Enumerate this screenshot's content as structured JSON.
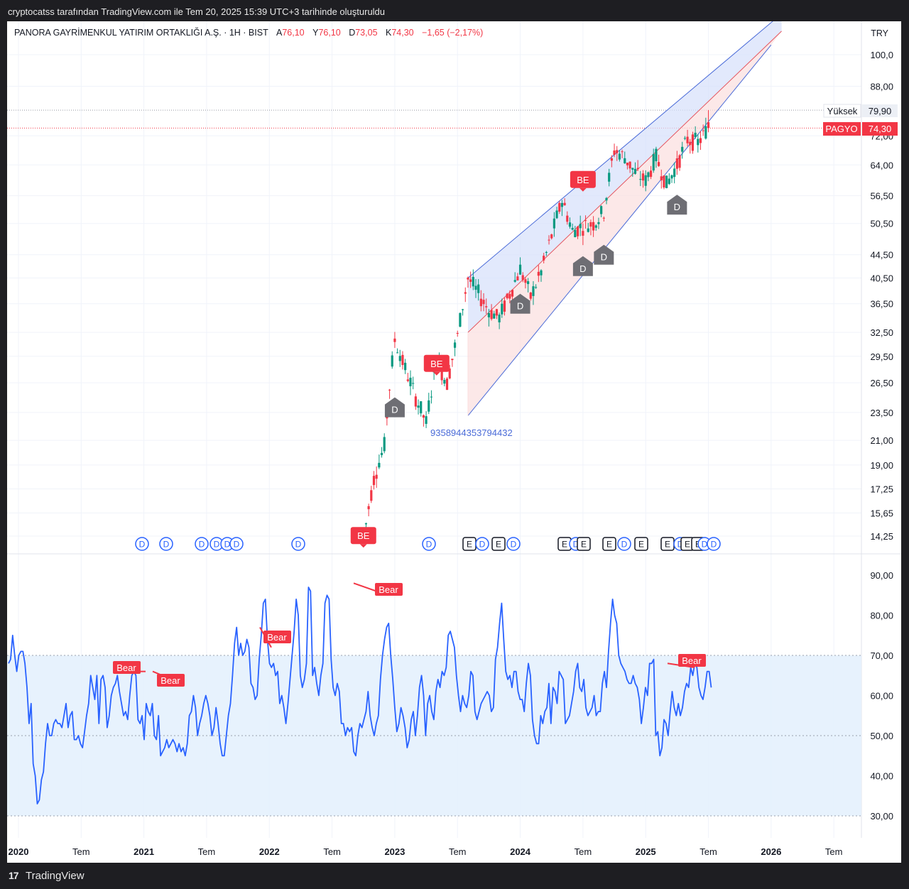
{
  "header": {
    "attribution": "cryptocatss tarafından TradingView.com ile Tem 20, 2025 15:39 UTC+3 tarihinde oluşturuldu"
  },
  "footer": {
    "brand": "TradingView"
  },
  "legend": {
    "symbol": "PANORA GAYRİMENKUL YATIRIM ORTAKLIĞI A.Ş. · 1H · BIST",
    "open_label": "A",
    "open": "76,10",
    "high_label": "Y",
    "high": "76,10",
    "low_label": "D",
    "low": "73,05",
    "close_label": "K",
    "close": "74,30",
    "change": "−1,65 (−2,17%)"
  },
  "currency": "TRY",
  "badges": {
    "high_name": "Yüksek",
    "high_value": "79,90",
    "last_name": "PAGYO",
    "last_value": "74,30"
  },
  "channel_label": "9358944353794432",
  "colors": {
    "up": "#089981",
    "down": "#f23645",
    "rsi": "#2962ff",
    "channel": "#4a6bd8",
    "bear": "#f23645",
    "marker_d": "#6e6e74"
  },
  "chart_data": [
    {
      "type": "candlestick",
      "title": "PANORA GAYRİMENKUL YATIRIM ORTAKLIĞI A.Ş.",
      "scale": "log",
      "price_axis_labels": [
        "100,0",
        "88,00",
        "72,00",
        "64,00",
        "56,50",
        "50,50",
        "44,50",
        "40,50",
        "36,50",
        "32,50",
        "29,50",
        "26,50",
        "23,50",
        "21,00",
        "19,00",
        "17,25",
        "15,65",
        "14,25"
      ],
      "time_axis_labels": [
        "2020",
        "Tem",
        "2021",
        "Tem",
        "2022",
        "Tem",
        "2023",
        "Tem",
        "2024",
        "Tem",
        "2025",
        "Tem",
        "2026",
        "Tem"
      ],
      "series_path": [
        [
          "2022-10",
          14.0
        ],
        [
          "2022-11",
          18.0
        ],
        [
          "2022-12",
          20.5
        ],
        [
          "2023-01",
          31.5
        ],
        [
          "2023-02",
          28.0
        ],
        [
          "2023-03",
          25.0
        ],
        [
          "2023-04",
          22.5
        ],
        [
          "2023-05",
          29.0
        ],
        [
          "2023-06",
          26.5
        ],
        [
          "2023-07",
          32.0
        ],
        [
          "2023-08",
          40.5
        ],
        [
          "2023-09",
          38.0
        ],
        [
          "2023-10",
          35.5
        ],
        [
          "2023-11",
          34.5
        ],
        [
          "2023-12",
          38.0
        ],
        [
          "2024-01",
          42.0
        ],
        [
          "2024-02",
          37.5
        ],
        [
          "2024-03",
          41.5
        ],
        [
          "2024-04",
          48.0
        ],
        [
          "2024-05",
          55.5
        ],
        [
          "2024-06",
          49.0
        ],
        [
          "2024-07",
          50.0
        ],
        [
          "2024-08",
          50.5
        ],
        [
          "2024-09",
          53.0
        ],
        [
          "2024-10",
          68.0
        ],
        [
          "2024-11",
          66.0
        ],
        [
          "2024-12",
          62.0
        ],
        [
          "2025-01",
          60.0
        ],
        [
          "2025-02",
          66.0
        ],
        [
          "2025-03",
          59.0
        ],
        [
          "2025-04",
          64.0
        ],
        [
          "2025-05",
          71.0
        ],
        [
          "2025-06",
          70.0
        ],
        [
          "2025-07",
          74.3
        ]
      ],
      "last_price": 74.3,
      "high": 79.9,
      "markers": [
        {
          "text": "BE",
          "date": "2022-10",
          "price": 14.2
        },
        {
          "text": "BE",
          "date": "2023-05",
          "price": 28.5
        },
        {
          "text": "BE",
          "date": "2024-07",
          "price": 60.0
        },
        {
          "text": "D",
          "date": "2023-01",
          "price": 24.0
        },
        {
          "text": "D",
          "date": "2024-01",
          "price": 36.5
        },
        {
          "text": "D",
          "date": "2024-07",
          "price": 42.5
        },
        {
          "text": "D",
          "date": "2024-09",
          "price": 44.5
        },
        {
          "text": "D",
          "date": "2025-04",
          "price": 54.5
        }
      ],
      "event_row": [
        "D",
        "D",
        "D",
        "D",
        "D",
        "D",
        "D",
        "D",
        "E",
        "D",
        "E",
        "D",
        "E",
        "D",
        "E",
        "E",
        "D",
        "E",
        "E",
        "D",
        "E",
        "E",
        "D",
        "D"
      ]
    },
    {
      "type": "line",
      "title": "",
      "axis_labels": [
        "90,00",
        "80,00",
        "70,00",
        "60,00",
        "50,00",
        "40,00",
        "30,00"
      ],
      "band": [
        30,
        70
      ],
      "midline": 50,
      "values": [
        68,
        69,
        75,
        70,
        66,
        70,
        71,
        71,
        68,
        62,
        53,
        58,
        43,
        40,
        33,
        34,
        39,
        41,
        48,
        53,
        50,
        50,
        53,
        54,
        53,
        53,
        52,
        55,
        58,
        52,
        55,
        56,
        49,
        49,
        50,
        48,
        47,
        51,
        55,
        58,
        65,
        62,
        59,
        65,
        53,
        64,
        65,
        62,
        52,
        55,
        60,
        62,
        63,
        65,
        61,
        58,
        55,
        56,
        54,
        60,
        65,
        66,
        65,
        54,
        53,
        55,
        49,
        58,
        56,
        55,
        58,
        50,
        49,
        55,
        45,
        46,
        47,
        49,
        47,
        48,
        49,
        48,
        46,
        48,
        46,
        47,
        45,
        48,
        55,
        56,
        60,
        57,
        50,
        53,
        55,
        58,
        60,
        58,
        55,
        50,
        52,
        57,
        53,
        48,
        45,
        45,
        50,
        55,
        58,
        65,
        73,
        77,
        70,
        73,
        70,
        71,
        74,
        72,
        63,
        62,
        59,
        60,
        69,
        75,
        83,
        84,
        74,
        68,
        67,
        68,
        65,
        66,
        58,
        60,
        57,
        53,
        58,
        64,
        70,
        76,
        84,
        80,
        65,
        62,
        64,
        68,
        87,
        86,
        65,
        67,
        63,
        60,
        65,
        68,
        83,
        85,
        84,
        69,
        62,
        60,
        63,
        61,
        53,
        53,
        50,
        52,
        51,
        52,
        46,
        45,
        50,
        53,
        52,
        54,
        56,
        61,
        55,
        52,
        50,
        53,
        55,
        64,
        70,
        74,
        77,
        78,
        70,
        64,
        57,
        51,
        53,
        57,
        55,
        52,
        47,
        49,
        54,
        56,
        50,
        55,
        62,
        65,
        60,
        50,
        58,
        60,
        56,
        54,
        61,
        64,
        62,
        66,
        65,
        67,
        75,
        76,
        74,
        72,
        65,
        60,
        56,
        60,
        58,
        57,
        60,
        66,
        65,
        56,
        54,
        56,
        58,
        59,
        60,
        61,
        60,
        56,
        57,
        69,
        72,
        78,
        83,
        74,
        66,
        64,
        65,
        62,
        66,
        66,
        61,
        59,
        59,
        56,
        63,
        68,
        65,
        54,
        50,
        48,
        48,
        55,
        53,
        56,
        57,
        63,
        53,
        62,
        61,
        58,
        66,
        65,
        64,
        53,
        54,
        55,
        58,
        61,
        66,
        68,
        62,
        61,
        64,
        57,
        55,
        56,
        57,
        60,
        55,
        56,
        56,
        63,
        66,
        62,
        71,
        78,
        84,
        80,
        78,
        70,
        68,
        67,
        66,
        64,
        63,
        63,
        65,
        63,
        62,
        59,
        53,
        57,
        62,
        60,
        68,
        68,
        69,
        50,
        51,
        45,
        47,
        54,
        53,
        50,
        56,
        61,
        57,
        55,
        58,
        55,
        57,
        61,
        63,
        62,
        67,
        65,
        68,
        67,
        62,
        60,
        59,
        62,
        66,
        66,
        62
      ],
      "annotations": [
        "Bear",
        "Bear",
        "Bear",
        "Bear",
        "Bear"
      ]
    }
  ]
}
